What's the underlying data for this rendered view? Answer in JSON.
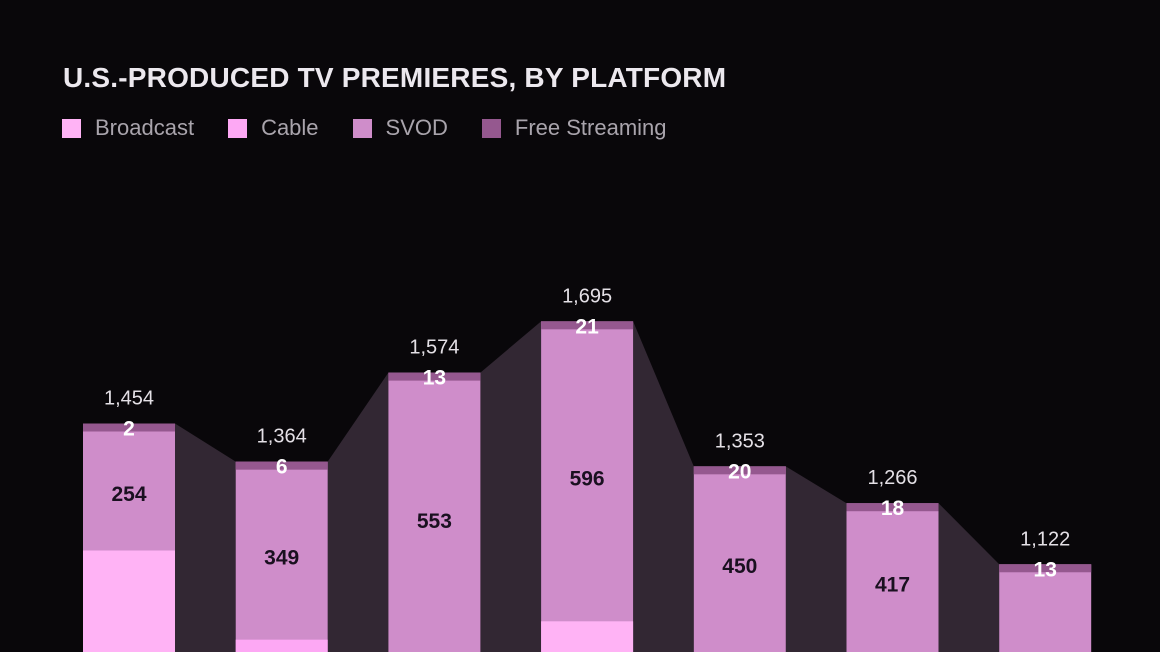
{
  "chart_data": {
    "type": "bar",
    "stacked": true,
    "title": "U.S.-PRODUCED TV PREMIERES, BY PLATFORM",
    "legend_position": "top-left",
    "series": [
      {
        "name": "Broadcast",
        "color": "#ffb3f5"
      },
      {
        "name": "Cable",
        "color": "#fda8f4"
      },
      {
        "name": "SVOD",
        "color": "#cf8dca"
      },
      {
        "name": "Free Streaming",
        "color": "#95588f"
      }
    ],
    "bars": [
      {
        "total": 1454,
        "total_label": "1,454",
        "svod": 254,
        "free_streaming": 2
      },
      {
        "total": 1364,
        "total_label": "1,364",
        "svod": 349,
        "free_streaming": 6
      },
      {
        "total": 1574,
        "total_label": "1,574",
        "svod": 553,
        "free_streaming": 13
      },
      {
        "total": 1695,
        "total_label": "1,695",
        "svod": 596,
        "free_streaming": 21
      },
      {
        "total": 1353,
        "total_label": "1,353",
        "svod": 450,
        "free_streaming": 20
      },
      {
        "total": 1266,
        "total_label": "1,266",
        "svod": 417,
        "free_streaming": 18
      },
      {
        "total": 1122,
        "total_label": "1,122",
        "svod": null,
        "free_streaming": 13
      }
    ],
    "connector_color": "#3a2d3b"
  }
}
